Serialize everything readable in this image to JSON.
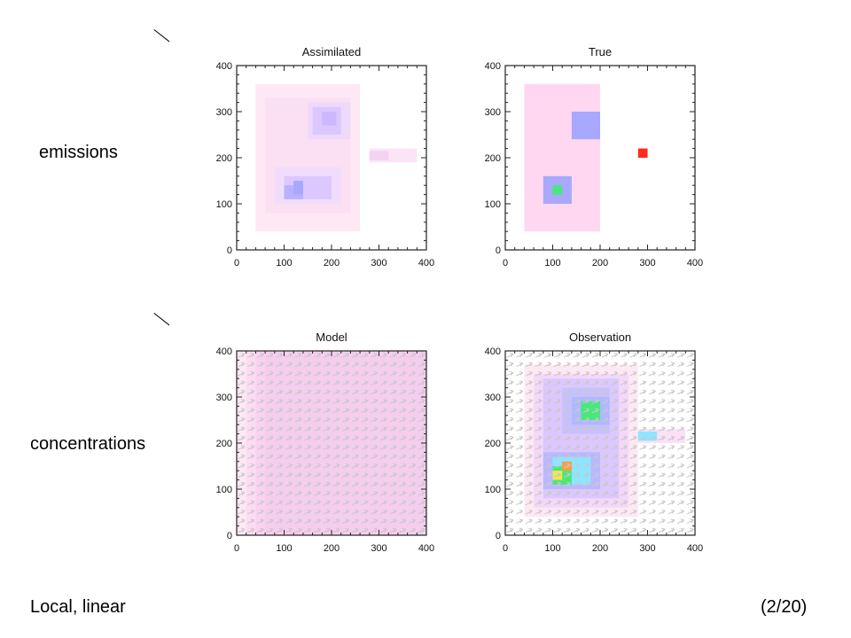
{
  "labels": {
    "emissions": "emissions",
    "concentrations": "concentrations",
    "method": "Local, linear",
    "page": "(2/20)"
  },
  "colors": {
    "background": "#ffffff",
    "base_pink": "#fde8f4",
    "pink": "#ffd7f0",
    "lavender": "#dcc8ff",
    "blue": "#a8a8ff",
    "cyan": "#8de6ff",
    "green": "#48e87a",
    "yellow": "#f4e64e",
    "orange": "#ff9b48",
    "red": "#ff2a1a",
    "arrow": "#c8c8c8"
  },
  "panels": [
    {
      "id": "assimilated",
      "title": "Assimilated",
      "xticks": [
        "0",
        "100",
        "200",
        "300",
        "400"
      ],
      "yticks": [
        "0",
        "100",
        "200",
        "300",
        "400"
      ],
      "axis_range": [
        0,
        400
      ],
      "wind_arrows": false,
      "cells": [
        {
          "x": [
            40,
            260
          ],
          "y": [
            40,
            360
          ],
          "color": "#fde8f4"
        },
        {
          "x": [
            60,
            240
          ],
          "y": [
            80,
            330
          ],
          "color": "#fbe0f4"
        },
        {
          "x": [
            150,
            240
          ],
          "y": [
            240,
            320
          ],
          "color": "#eed9fb"
        },
        {
          "x": [
            160,
            220
          ],
          "y": [
            250,
            310
          ],
          "color": "#dcc8ff"
        },
        {
          "x": [
            180,
            210
          ],
          "y": [
            270,
            300
          ],
          "color": "#cbb8ff"
        },
        {
          "x": [
            80,
            220
          ],
          "y": [
            100,
            180
          ],
          "color": "#f1ddfb"
        },
        {
          "x": [
            100,
            200
          ],
          "y": [
            110,
            160
          ],
          "color": "#dcc8ff"
        },
        {
          "x": [
            100,
            140
          ],
          "y": [
            110,
            140
          ],
          "color": "#b9b0ff"
        },
        {
          "x": [
            120,
            140
          ],
          "y": [
            120,
            150
          ],
          "color": "#a8a8ff"
        },
        {
          "x": [
            280,
            380
          ],
          "y": [
            190,
            220
          ],
          "color": "#fbe4f6"
        },
        {
          "x": [
            280,
            320
          ],
          "y": [
            195,
            215
          ],
          "color": "#f4d2f4"
        }
      ]
    },
    {
      "id": "true",
      "title": "True",
      "xticks": [
        "0",
        "100",
        "200",
        "300",
        "400"
      ],
      "yticks": [
        "0",
        "100",
        "200",
        "300",
        "400"
      ],
      "axis_range": [
        0,
        400
      ],
      "wind_arrows": false,
      "cells": [
        {
          "x": [
            40,
            200
          ],
          "y": [
            40,
            360
          ],
          "color": "#ffd7f0"
        },
        {
          "x": [
            140,
            200
          ],
          "y": [
            240,
            300
          ],
          "color": "#a8a8ff"
        },
        {
          "x": [
            80,
            140
          ],
          "y": [
            100,
            160
          ],
          "color": "#a8a8ff"
        },
        {
          "x": [
            100,
            120
          ],
          "y": [
            120,
            140
          ],
          "color": "#48e87a"
        },
        {
          "x": [
            280,
            300
          ],
          "y": [
            200,
            220
          ],
          "color": "#ff2a1a"
        }
      ]
    },
    {
      "id": "model",
      "title": "Model",
      "xticks": [
        "0",
        "100",
        "200",
        "300",
        "400"
      ],
      "yticks": [
        "0",
        "100",
        "200",
        "300",
        "400"
      ],
      "axis_range": [
        0,
        400
      ],
      "wind_arrows": true,
      "cells": [
        {
          "x": [
            0,
            400
          ],
          "y": [
            0,
            400
          ],
          "color": "#fde8f4"
        },
        {
          "x": [
            20,
            400
          ],
          "y": [
            0,
            400
          ],
          "color": "#fbdcf2"
        },
        {
          "x": [
            40,
            400
          ],
          "y": [
            0,
            400
          ],
          "color": "#f8d2f0"
        },
        {
          "x": [
            60,
            400
          ],
          "y": [
            0,
            400
          ],
          "color": "#f5cdee"
        }
      ]
    },
    {
      "id": "observation",
      "title": "Observation",
      "xticks": [
        "0",
        "100",
        "200",
        "300",
        "400"
      ],
      "yticks": [
        "0",
        "100",
        "200",
        "300",
        "400"
      ],
      "axis_range": [
        0,
        400
      ],
      "wind_arrows": true,
      "cells": [
        {
          "x": [
            40,
            280
          ],
          "y": [
            40,
            370
          ],
          "color": "#fde8f4"
        },
        {
          "x": [
            60,
            260
          ],
          "y": [
            60,
            350
          ],
          "color": "#f4d8f8"
        },
        {
          "x": [
            80,
            240
          ],
          "y": [
            80,
            340
          ],
          "color": "#dcc8ff"
        },
        {
          "x": [
            120,
            220
          ],
          "y": [
            220,
            320
          ],
          "color": "#c7c0ff"
        },
        {
          "x": [
            140,
            220
          ],
          "y": [
            240,
            300
          ],
          "color": "#b0b8ff"
        },
        {
          "x": [
            160,
            200
          ],
          "y": [
            250,
            290
          ],
          "color": "#48e87a"
        },
        {
          "x": [
            80,
            200
          ],
          "y": [
            100,
            180
          ],
          "color": "#b9b8ff"
        },
        {
          "x": [
            100,
            180
          ],
          "y": [
            110,
            170
          ],
          "color": "#8de6ff"
        },
        {
          "x": [
            100,
            140
          ],
          "y": [
            110,
            150
          ],
          "color": "#48e87a"
        },
        {
          "x": [
            120,
            140
          ],
          "y": [
            140,
            160
          ],
          "color": "#ff9b48"
        },
        {
          "x": [
            100,
            120
          ],
          "y": [
            120,
            140
          ],
          "color": "#f4e64e"
        },
        {
          "x": [
            280,
            380
          ],
          "y": [
            200,
            230
          ],
          "color": "#fbe0f6"
        },
        {
          "x": [
            280,
            320
          ],
          "y": [
            205,
            225
          ],
          "color": "#8de6ff"
        }
      ]
    }
  ]
}
